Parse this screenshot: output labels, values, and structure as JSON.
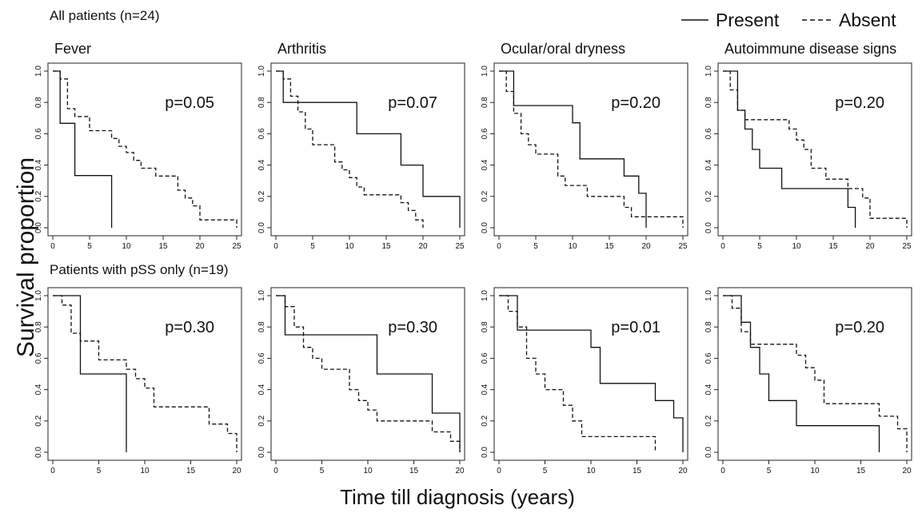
{
  "figure": {
    "ylabel": "Survival proportion",
    "xlabel": "Time till diagnosis (years)",
    "row_titles": [
      "All patients (n=24)",
      "Patients with pSS only (n=19)"
    ],
    "legend": {
      "present": "Present",
      "absent": "Absent",
      "placement": "top-right"
    }
  },
  "chart_data": [
    {
      "type": "line",
      "title": "Fever",
      "annotation": "p=0.05",
      "xlim": [
        0,
        25
      ],
      "ylim": [
        0,
        1
      ],
      "xticks": [
        0,
        5,
        10,
        15,
        20,
        25
      ],
      "xtick_labels": [
        "0",
        "5",
        "10",
        "15",
        "20",
        "25"
      ],
      "yticks": [
        0,
        0.2,
        0.4,
        0.6,
        0.8,
        1.0
      ],
      "ytick_labels": [
        "0.0",
        "0.2",
        "0.4",
        "0.6",
        "0.8",
        "1.0"
      ],
      "series": [
        {
          "name": "Present",
          "style": "solid",
          "x": [
            0,
            1,
            3,
            8
          ],
          "y": [
            1.0,
            0.667,
            0.333,
            0.0
          ]
        },
        {
          "name": "Absent",
          "style": "dashed",
          "x": [
            0,
            1,
            2,
            3,
            5,
            8,
            9,
            10,
            11,
            12,
            14,
            17,
            18,
            19,
            20,
            25
          ],
          "y": [
            1.0,
            0.95,
            0.76,
            0.71,
            0.62,
            0.57,
            0.52,
            0.48,
            0.43,
            0.38,
            0.33,
            0.24,
            0.19,
            0.14,
            0.05,
            0.0
          ]
        }
      ]
    },
    {
      "type": "line",
      "title": "Arthritis",
      "annotation": "p=0.07",
      "xlim": [
        0,
        25
      ],
      "ylim": [
        0,
        1
      ],
      "xticks": [
        0,
        5,
        10,
        15,
        20,
        25
      ],
      "xtick_labels": [
        "0",
        "5",
        "10",
        "15",
        "20",
        "25"
      ],
      "yticks": [
        0,
        0.2,
        0.4,
        0.6,
        0.8,
        1.0
      ],
      "ytick_labels": [
        "0.0",
        "0.2",
        "0.4",
        "0.6",
        "0.8",
        "1.0"
      ],
      "series": [
        {
          "name": "Present",
          "style": "solid",
          "x": [
            0,
            1,
            11,
            17,
            20,
            25
          ],
          "y": [
            1.0,
            0.8,
            0.6,
            0.4,
            0.2,
            0.0
          ]
        },
        {
          "name": "Absent",
          "style": "dashed",
          "x": [
            0,
            1,
            2,
            3,
            4,
            5,
            8,
            9,
            10,
            11,
            12,
            14,
            17,
            18,
            19,
            20
          ],
          "y": [
            1.0,
            0.95,
            0.84,
            0.74,
            0.63,
            0.53,
            0.42,
            0.37,
            0.32,
            0.26,
            0.21,
            0.21,
            0.16,
            0.11,
            0.05,
            0.0
          ]
        }
      ]
    },
    {
      "type": "line",
      "title": "Ocular/oral dryness",
      "annotation": "p=0.20",
      "xlim": [
        0,
        25
      ],
      "ylim": [
        0,
        1
      ],
      "xticks": [
        0,
        5,
        10,
        15,
        20,
        25
      ],
      "xtick_labels": [
        "0",
        "5",
        "10",
        "15",
        "20",
        "25"
      ],
      "yticks": [
        0,
        0.2,
        0.4,
        0.6,
        0.8,
        1.0
      ],
      "ytick_labels": [
        "0.0",
        "0.2",
        "0.4",
        "0.6",
        "0.8",
        "1.0"
      ],
      "series": [
        {
          "name": "Present",
          "style": "solid",
          "x": [
            0,
            2,
            10,
            11,
            17,
            19,
            20
          ],
          "y": [
            1.0,
            0.78,
            0.67,
            0.44,
            0.33,
            0.22,
            0.0
          ]
        },
        {
          "name": "Absent",
          "style": "dashed",
          "x": [
            0,
            1,
            2,
            3,
            4,
            5,
            8,
            9,
            12,
            14,
            17,
            18,
            25
          ],
          "y": [
            1.0,
            0.87,
            0.73,
            0.6,
            0.53,
            0.47,
            0.33,
            0.27,
            0.2,
            0.2,
            0.13,
            0.07,
            0.0
          ]
        }
      ]
    },
    {
      "type": "line",
      "title": "Autoimmune disease signs",
      "annotation": "p=0.20",
      "xlim": [
        0,
        25
      ],
      "ylim": [
        0,
        1
      ],
      "xticks": [
        0,
        5,
        10,
        15,
        20,
        25
      ],
      "xtick_labels": [
        "0",
        "5",
        "10",
        "15",
        "20",
        "25"
      ],
      "yticks": [
        0,
        0.2,
        0.4,
        0.6,
        0.8,
        1.0
      ],
      "ytick_labels": [
        "0.0",
        "0.2",
        "0.4",
        "0.6",
        "0.8",
        "1.0"
      ],
      "series": [
        {
          "name": "Present",
          "style": "solid",
          "x": [
            0,
            2,
            3,
            4,
            5,
            8,
            17,
            18
          ],
          "y": [
            1.0,
            0.75,
            0.63,
            0.5,
            0.38,
            0.25,
            0.13,
            0.0
          ]
        },
        {
          "name": "Absent",
          "style": "dashed",
          "x": [
            0,
            1,
            2,
            3,
            9,
            10,
            11,
            12,
            14,
            17,
            19,
            20,
            25
          ],
          "y": [
            1.0,
            0.88,
            0.75,
            0.69,
            0.63,
            0.56,
            0.5,
            0.38,
            0.31,
            0.25,
            0.19,
            0.06,
            0.0
          ]
        }
      ]
    },
    {
      "type": "line",
      "title": "",
      "annotation": "p=0.30",
      "xlim": [
        0,
        20
      ],
      "ylim": [
        0,
        1
      ],
      "xticks": [
        0,
        5,
        10,
        15,
        20
      ],
      "xtick_labels": [
        "0",
        "5",
        "10",
        "15",
        "20"
      ],
      "yticks": [
        0,
        0.2,
        0.4,
        0.6,
        0.8,
        1.0
      ],
      "ytick_labels": [
        "0.0",
        "0.2",
        "0.4",
        "0.6",
        "0.8",
        "1.0"
      ],
      "series": [
        {
          "name": "Present",
          "style": "solid",
          "x": [
            0,
            3,
            8
          ],
          "y": [
            1.0,
            0.5,
            0.0
          ]
        },
        {
          "name": "Absent",
          "style": "dashed",
          "x": [
            0,
            1,
            2,
            3,
            5,
            8,
            9,
            10,
            11,
            17,
            19,
            20
          ],
          "y": [
            1.0,
            0.94,
            0.76,
            0.71,
            0.59,
            0.53,
            0.47,
            0.41,
            0.29,
            0.18,
            0.12,
            0.0
          ]
        }
      ]
    },
    {
      "type": "line",
      "title": "",
      "annotation": "p=0.30",
      "xlim": [
        0,
        20
      ],
      "ylim": [
        0,
        1
      ],
      "xticks": [
        0,
        5,
        10,
        15,
        20
      ],
      "xtick_labels": [
        "0",
        "5",
        "10",
        "15",
        "20"
      ],
      "yticks": [
        0,
        0.2,
        0.4,
        0.6,
        0.8,
        1.0
      ],
      "ytick_labels": [
        "0.0",
        "0.2",
        "0.4",
        "0.6",
        "0.8",
        "1.0"
      ],
      "series": [
        {
          "name": "Present",
          "style": "solid",
          "x": [
            0,
            1,
            11,
            17,
            20
          ],
          "y": [
            1.0,
            0.75,
            0.5,
            0.25,
            0.0
          ]
        },
        {
          "name": "Absent",
          "style": "dashed",
          "x": [
            0,
            1,
            2,
            3,
            4,
            5,
            8,
            9,
            10,
            11,
            17,
            19,
            20
          ],
          "y": [
            1.0,
            0.93,
            0.8,
            0.67,
            0.6,
            0.53,
            0.4,
            0.33,
            0.27,
            0.2,
            0.13,
            0.07,
            0.0
          ]
        }
      ]
    },
    {
      "type": "line",
      "title": "",
      "annotation": "p=0.01",
      "xlim": [
        0,
        20
      ],
      "ylim": [
        0,
        1
      ],
      "xticks": [
        0,
        5,
        10,
        15,
        20
      ],
      "xtick_labels": [
        "0",
        "5",
        "10",
        "15",
        "20"
      ],
      "yticks": [
        0,
        0.2,
        0.4,
        0.6,
        0.8,
        1.0
      ],
      "ytick_labels": [
        "0.0",
        "0.2",
        "0.4",
        "0.6",
        "0.8",
        "1.0"
      ],
      "series": [
        {
          "name": "Present",
          "style": "solid",
          "x": [
            0,
            2,
            10,
            11,
            17,
            19,
            20
          ],
          "y": [
            1.0,
            0.78,
            0.67,
            0.44,
            0.33,
            0.22,
            0.0
          ]
        },
        {
          "name": "Absent",
          "style": "dashed",
          "x": [
            0,
            1,
            2,
            3,
            4,
            5,
            7,
            8,
            9,
            17
          ],
          "y": [
            1.0,
            0.9,
            0.8,
            0.6,
            0.5,
            0.4,
            0.3,
            0.2,
            0.1,
            0.0
          ]
        }
      ]
    },
    {
      "type": "line",
      "title": "",
      "annotation": "p=0.20",
      "xlim": [
        0,
        20
      ],
      "ylim": [
        0,
        1
      ],
      "xticks": [
        0,
        5,
        10,
        15,
        20
      ],
      "xtick_labels": [
        "0",
        "5",
        "10",
        "15",
        "20"
      ],
      "yticks": [
        0,
        0.2,
        0.4,
        0.6,
        0.8,
        1.0
      ],
      "ytick_labels": [
        "0.0",
        "0.2",
        "0.4",
        "0.6",
        "0.8",
        "1.0"
      ],
      "series": [
        {
          "name": "Present",
          "style": "solid",
          "x": [
            0,
            2,
            3,
            4,
            5,
            8,
            17
          ],
          "y": [
            1.0,
            0.83,
            0.67,
            0.5,
            0.33,
            0.17,
            0.0
          ]
        },
        {
          "name": "Absent",
          "style": "dashed",
          "x": [
            0,
            1,
            2,
            3,
            8,
            9,
            10,
            11,
            17,
            18,
            19,
            20
          ],
          "y": [
            1.0,
            0.92,
            0.77,
            0.69,
            0.62,
            0.54,
            0.46,
            0.31,
            0.23,
            0.23,
            0.15,
            0.0
          ]
        }
      ]
    }
  ]
}
